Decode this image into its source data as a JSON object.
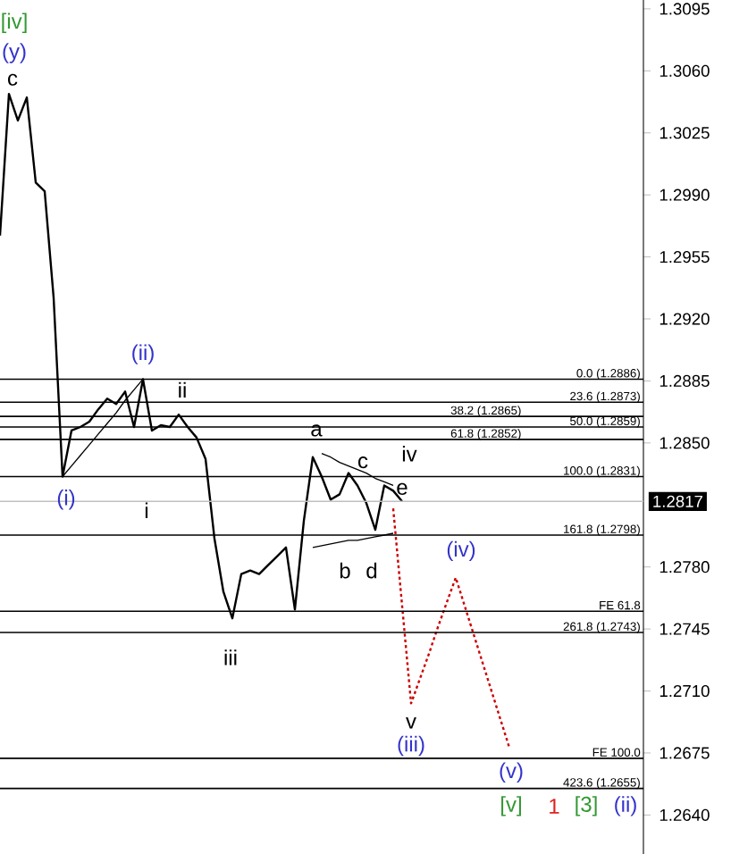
{
  "chart_data": {
    "type": "line",
    "ylim": [
      1.2618,
      1.31
    ],
    "tick_labels": "y",
    "grid": false,
    "marker": "none",
    "categories": [
      null,
      null,
      null,
      null,
      null,
      null,
      null,
      null,
      null,
      null,
      null,
      null,
      null,
      null,
      null,
      null,
      null,
      null,
      null,
      null,
      null,
      null,
      null,
      null,
      null,
      null,
      null,
      null,
      null,
      null,
      null,
      null,
      null,
      null,
      null,
      null,
      null,
      null,
      null,
      null,
      null,
      null,
      null,
      null,
      null,
      null,
      null,
      null,
      null,
      null,
      null,
      null,
      null,
      null,
      null,
      null,
      null,
      null,
      null,
      null,
      null,
      null,
      null,
      null,
      null,
      null,
      null,
      null,
      null,
      null,
      null,
      null,
      null
    ],
    "yticks": [
      {
        "value": 1.264,
        "label": "1.2640"
      },
      {
        "value": 1.2675,
        "label": "1.2675"
      },
      {
        "value": 1.271,
        "label": "1.2710"
      },
      {
        "value": 1.2745,
        "label": "1.2745"
      },
      {
        "value": 1.278,
        "label": "1.2780"
      },
      {
        "value": 1.285,
        "label": "1.2850"
      },
      {
        "value": 1.2885,
        "label": "1.2885"
      },
      {
        "value": 1.292,
        "label": "1.2920"
      },
      {
        "value": 1.2955,
        "label": "1.2955"
      },
      {
        "value": 1.299,
        "label": "1.2990"
      },
      {
        "value": 1.3025,
        "label": "1.3025"
      },
      {
        "value": 1.306,
        "label": "1.3060"
      },
      {
        "value": 1.3095,
        "label": "1.3095"
      }
    ],
    "series": [
      {
        "color": "#000000",
        "line_style": "solid",
        "values": [
          1.2967,
          1.3047,
          1.3032,
          1.3045,
          1.2997,
          1.2992,
          1.2932,
          1.2831,
          1.2857,
          1.2859,
          1.2862,
          1.2869,
          1.2875,
          1.2872,
          1.2879,
          1.2859,
          1.2886,
          1.2857,
          1.286,
          1.2859,
          1.2866,
          1.2859,
          1.2853,
          1.2841,
          1.2796,
          1.2766,
          1.2751,
          1.2776,
          1.2778,
          1.2776,
          1.2781,
          1.2786,
          1.2791,
          1.2756,
          1.2806,
          1.2842,
          1.2831,
          1.2818,
          1.2821,
          1.2833,
          1.2826,
          1.2816,
          1.2801,
          1.2826,
          1.2823,
          1.2817,
          null,
          null,
          null,
          null,
          null,
          null,
          null,
          null,
          null,
          null,
          null,
          null,
          null,
          null,
          null,
          null,
          null,
          null,
          null,
          null,
          null,
          null,
          null,
          null,
          null,
          null,
          null
        ]
      },
      {
        "color": "#000000",
        "line_style": "solid",
        "values": [
          null,
          null,
          null,
          null,
          null,
          null,
          null,
          1.2831,
          1.2837,
          1.2843,
          1.2849,
          1.2855,
          1.2861,
          1.2867,
          1.2874,
          1.288,
          1.2886,
          null,
          null,
          null,
          null,
          null,
          null,
          null,
          null,
          null,
          null,
          null,
          null,
          null,
          null,
          null,
          null,
          null,
          null,
          null,
          null,
          null,
          null,
          null,
          null,
          null,
          null,
          null,
          null,
          null,
          null,
          null,
          null,
          null,
          null,
          null,
          null,
          null,
          null,
          null,
          null,
          null,
          null,
          null,
          null,
          null,
          null,
          null,
          null,
          null,
          null,
          null,
          null,
          null,
          null,
          null,
          null
        ]
      },
      {
        "color": "#000000",
        "line_style": "solid",
        "values": [
          null,
          null,
          null,
          null,
          null,
          null,
          null,
          null,
          null,
          null,
          null,
          null,
          null,
          null,
          null,
          null,
          null,
          null,
          null,
          null,
          null,
          null,
          null,
          null,
          null,
          null,
          null,
          null,
          null,
          null,
          null,
          null,
          null,
          null,
          null,
          null,
          1.2844,
          1.2842,
          1.2839,
          1.2837,
          1.2835,
          1.2833,
          1.283,
          1.2828,
          1.2826,
          null,
          null,
          null,
          null,
          null,
          null,
          null,
          null,
          null,
          null,
          null,
          null,
          null,
          null,
          null,
          null,
          null,
          null,
          null,
          null,
          null,
          null,
          null,
          null,
          null,
          null,
          null,
          null
        ]
      },
      {
        "color": "#000000",
        "line_style": "solid",
        "values": [
          null,
          null,
          null,
          null,
          null,
          null,
          null,
          null,
          null,
          null,
          null,
          null,
          null,
          null,
          null,
          null,
          null,
          null,
          null,
          null,
          null,
          null,
          null,
          null,
          null,
          null,
          null,
          null,
          null,
          null,
          null,
          null,
          null,
          null,
          null,
          1.2791,
          1.2792,
          1.2793,
          1.2794,
          1.2795,
          1.2795,
          1.2796,
          1.2797,
          1.2798,
          1.2799,
          null,
          null,
          null,
          null,
          null,
          null,
          null,
          null,
          null,
          null,
          null,
          null,
          null,
          null,
          null,
          null,
          null,
          null,
          null,
          null,
          null,
          null,
          null,
          null,
          null,
          null,
          null,
          null
        ]
      },
      {
        "color": "#cc0000",
        "line_style": "dotted",
        "values": [
          null,
          null,
          null,
          null,
          null,
          null,
          null,
          null,
          null,
          null,
          null,
          null,
          null,
          null,
          null,
          null,
          null,
          null,
          null,
          null,
          null,
          null,
          null,
          null,
          null,
          null,
          null,
          null,
          null,
          null,
          null,
          null,
          null,
          null,
          null,
          null,
          null,
          null,
          null,
          null,
          null,
          null,
          null,
          null,
          1.2813,
          1.2758,
          1.2703,
          1.2717,
          1.2731,
          1.2746,
          1.276,
          1.2774,
          1.2758,
          1.2742,
          1.2726,
          1.271,
          1.2694,
          1.2678,
          null,
          null,
          null,
          null,
          null,
          null,
          null,
          null,
          null,
          null,
          null,
          null,
          null,
          null,
          null
        ]
      }
    ],
    "ref_lines": [
      {
        "axis": "y",
        "value": 1.2886,
        "label": "0.0 (1.2886)"
      },
      {
        "axis": "y",
        "value": 1.2873,
        "label": "23.6 (1.2873)"
      },
      {
        "axis": "y",
        "value": 1.2865,
        "label": "38.2 (1.2865)"
      },
      {
        "axis": "y",
        "value": 1.2859,
        "label": "50.0 (1.2859)"
      },
      {
        "axis": "y",
        "value": 1.2852,
        "label": "61.8 (1.2852)"
      },
      {
        "axis": "y",
        "value": 1.2831,
        "label": "100.0 (1.2831)"
      },
      {
        "axis": "y",
        "value": 1.2798,
        "label": "161.8 (1.2798)"
      },
      {
        "axis": "y",
        "value": 1.2755,
        "label": "FE 61.8"
      },
      {
        "axis": "y",
        "value": 1.2743,
        "label": "261.8 (1.2743)"
      },
      {
        "axis": "y",
        "value": 1.2672,
        "label": "FE 100.0"
      },
      {
        "axis": "y",
        "value": 1.2655,
        "label": "423.6 (1.2655)"
      },
      {
        "axis": "y",
        "value": 1.2817,
        "label": "1.2817",
        "color": "#c0c0c0"
      }
    ],
    "annotations": [
      "[iv]",
      "(y)",
      "c",
      "(ii)",
      "ii",
      "(i)",
      "i",
      "a",
      "c",
      "iv",
      "e",
      "b",
      "d",
      "iii",
      "(iv)",
      "v",
      "(iii)",
      "(v)",
      "[v]",
      "1",
      "[3]",
      "(ii)"
    ]
  }
}
